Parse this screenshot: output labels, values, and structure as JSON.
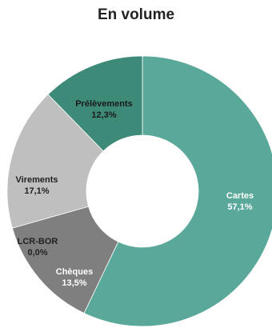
{
  "chart_data": {
    "type": "pie",
    "title": "En volume",
    "start_category": "Cartes",
    "slices": [
      {
        "name": "Cartes",
        "value": 57.1,
        "label": "57,1%",
        "color": "#5aa89a",
        "text_color": "#ffffff"
      },
      {
        "name": "Chèques",
        "value": 13.5,
        "label": "13,5%",
        "color": "#7f7f7f",
        "text_color": "#ffffff"
      },
      {
        "name": "LCR-BOR",
        "value": 0.0,
        "label": "0,0%",
        "color": "#a6a6a6",
        "text_color": "#222222"
      },
      {
        "name": "Virements",
        "value": 17.1,
        "label": "17,1%",
        "color": "#bfbfbf",
        "text_color": "#222222"
      },
      {
        "name": "Prélèvements",
        "value": 12.3,
        "label": "12,3%",
        "color": "#3e8a78",
        "text_color": "#1a1a1a"
      }
    ]
  }
}
